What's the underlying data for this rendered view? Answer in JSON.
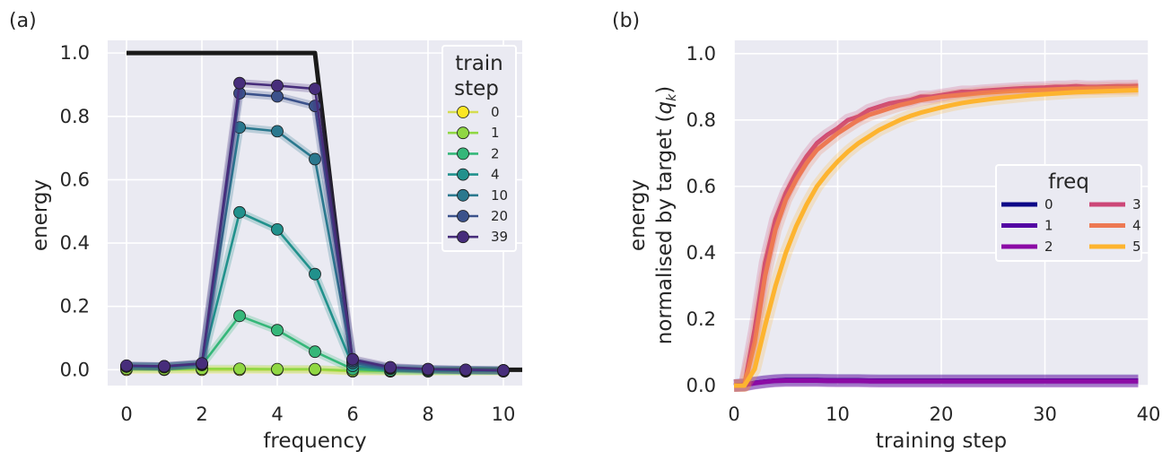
{
  "chart_data": [
    {
      "panel_label": "(a)",
      "type": "line",
      "xlabel": "frequency",
      "ylabel": "energy",
      "xlim": [
        -0.5,
        10.5
      ],
      "ylim": [
        -0.05,
        1.04
      ],
      "xticks": [
        0,
        2,
        4,
        6,
        8,
        10
      ],
      "yticks": [
        0.0,
        0.2,
        0.4,
        0.6,
        0.8,
        1.0
      ],
      "xtick_labels": [
        "0",
        "2",
        "4",
        "6",
        "8",
        "10"
      ],
      "ytick_labels": [
        "0.0",
        "0.2",
        "0.4",
        "0.6",
        "0.8",
        "1.0"
      ],
      "grid": true,
      "legend_title_lines": [
        "train",
        "step"
      ],
      "legend_position": "top-right",
      "target": {
        "name": "target",
        "color": "#1a1a1a",
        "x": [
          0,
          1,
          2,
          3,
          4,
          5,
          6,
          7,
          8,
          9,
          10,
          10.5
        ],
        "y": [
          1.0,
          1.0,
          1.0,
          1.0,
          1.0,
          1.0,
          0.0,
          0.0,
          0.0,
          0.0,
          0.0,
          0.0
        ]
      },
      "x": [
        0,
        1,
        2,
        3,
        4,
        5,
        6,
        7,
        8,
        9,
        10
      ],
      "series": [
        {
          "name": "0",
          "color": "#fde725",
          "line_color": "#d4dc50",
          "values": [
            0.0,
            0.0,
            0.0,
            0.0,
            0.0,
            0.0,
            -0.005,
            -0.005,
            -0.005,
            -0.005,
            -0.005
          ]
        },
        {
          "name": "1",
          "color": "#90d743",
          "line_color": "#90d743",
          "values": [
            0.003,
            0.002,
            0.003,
            0.003,
            0.002,
            0.002,
            -0.003,
            -0.004,
            -0.004,
            -0.004,
            -0.004
          ]
        },
        {
          "name": "2",
          "color": "#35b779",
          "line_color": "#35b779",
          "values": [
            0.01,
            0.008,
            0.015,
            0.17,
            0.125,
            0.057,
            0.002,
            -0.002,
            -0.003,
            -0.003,
            -0.003
          ]
        },
        {
          "name": "4",
          "color": "#21918c",
          "line_color": "#21918c",
          "values": [
            0.01,
            0.009,
            0.017,
            0.497,
            0.443,
            0.302,
            0.012,
            0.003,
            0.0,
            -0.002,
            -0.003
          ]
        },
        {
          "name": "10",
          "color": "#2a788e",
          "line_color": "#2a788e",
          "values": [
            0.012,
            0.01,
            0.018,
            0.765,
            0.753,
            0.665,
            0.022,
            0.005,
            0.001,
            -0.001,
            -0.002
          ]
        },
        {
          "name": "20",
          "color": "#3b528b",
          "line_color": "#3b528b",
          "values": [
            0.012,
            0.011,
            0.019,
            0.873,
            0.863,
            0.833,
            0.028,
            0.006,
            0.002,
            -0.001,
            -0.002
          ]
        },
        {
          "name": "39",
          "color": "#472d7b",
          "line_color": "#472d7b",
          "values": [
            0.013,
            0.011,
            0.02,
            0.905,
            0.897,
            0.887,
            0.033,
            0.008,
            0.002,
            0.0,
            -0.002
          ]
        }
      ]
    },
    {
      "panel_label": "(b)",
      "type": "line",
      "xlabel": "training step",
      "ylabel_lines": [
        "energy",
        "normalised by target ("
      ],
      "ylabel_symbol": "q",
      "ylabel_subscript": "k",
      "ylabel_close": ")",
      "xlim": [
        0,
        40
      ],
      "ylim": [
        0,
        1.04
      ],
      "xticks": [
        0,
        10,
        20,
        30,
        40
      ],
      "yticks": [
        0.0,
        0.2,
        0.4,
        0.6,
        0.8,
        1.0
      ],
      "xtick_labels": [
        "0",
        "10",
        "20",
        "30",
        "40"
      ],
      "ytick_labels": [
        "0.0",
        "0.2",
        "0.4",
        "0.6",
        "0.8",
        "1.0"
      ],
      "grid": true,
      "legend_title": "freq",
      "legend_position": "center-right",
      "x": [
        0,
        1,
        2,
        3,
        4,
        5,
        6,
        7,
        8,
        9,
        10,
        11,
        12,
        13,
        14,
        15,
        16,
        17,
        18,
        19,
        20,
        21,
        22,
        23,
        24,
        25,
        26,
        27,
        28,
        29,
        30,
        31,
        32,
        33,
        34,
        35,
        36,
        37,
        38,
        39
      ],
      "series": [
        {
          "name": "0",
          "color": "#0d0887",
          "values": [
            0,
            0.002,
            0.008,
            0.012,
            0.015,
            0.017,
            0.017,
            0.017,
            0.017,
            0.016,
            0.016,
            0.016,
            0.016,
            0.015,
            0.015,
            0.015,
            0.015,
            0.015,
            0.015,
            0.015,
            0.015,
            0.015,
            0.015,
            0.015,
            0.015,
            0.015,
            0.015,
            0.015,
            0.015,
            0.015,
            0.015,
            0.015,
            0.015,
            0.015,
            0.015,
            0.015,
            0.015,
            0.015,
            0.015,
            0.015
          ]
        },
        {
          "name": "1",
          "color": "#5302a3",
          "values": [
            0,
            0.002,
            0.008,
            0.012,
            0.015,
            0.016,
            0.016,
            0.016,
            0.016,
            0.016,
            0.015,
            0.015,
            0.015,
            0.015,
            0.014,
            0.014,
            0.014,
            0.014,
            0.014,
            0.014,
            0.014,
            0.014,
            0.014,
            0.014,
            0.014,
            0.014,
            0.014,
            0.014,
            0.014,
            0.014,
            0.014,
            0.014,
            0.014,
            0.014,
            0.014,
            0.014,
            0.014,
            0.014,
            0.014,
            0.014
          ]
        },
        {
          "name": "2",
          "color": "#8b0aa5",
          "values": [
            0,
            0.002,
            0.007,
            0.011,
            0.014,
            0.015,
            0.015,
            0.015,
            0.015,
            0.014,
            0.014,
            0.014,
            0.014,
            0.013,
            0.013,
            0.013,
            0.013,
            0.013,
            0.013,
            0.013,
            0.013,
            0.013,
            0.013,
            0.013,
            0.013,
            0.013,
            0.013,
            0.013,
            0.013,
            0.013,
            0.013,
            0.013,
            0.013,
            0.013,
            0.013,
            0.013,
            0.013,
            0.013,
            0.013,
            0.013
          ]
        },
        {
          "name": "3",
          "color": "#cc4778",
          "values": [
            0,
            0.0,
            0.17,
            0.37,
            0.5,
            0.58,
            0.64,
            0.69,
            0.73,
            0.755,
            0.775,
            0.8,
            0.81,
            0.83,
            0.84,
            0.85,
            0.855,
            0.86,
            0.87,
            0.87,
            0.875,
            0.88,
            0.885,
            0.885,
            0.888,
            0.89,
            0.892,
            0.894,
            0.896,
            0.897,
            0.898,
            0.9,
            0.9,
            0.902,
            0.9,
            0.9,
            0.901,
            0.902,
            0.902,
            0.903
          ]
        },
        {
          "name": "4",
          "color": "#ed7953",
          "values": [
            0,
            0.0,
            0.13,
            0.33,
            0.47,
            0.56,
            0.62,
            0.67,
            0.71,
            0.735,
            0.76,
            0.78,
            0.8,
            0.815,
            0.825,
            0.835,
            0.845,
            0.852,
            0.86,
            0.865,
            0.87,
            0.873,
            0.876,
            0.879,
            0.882,
            0.884,
            0.886,
            0.888,
            0.889,
            0.89,
            0.891,
            0.892,
            0.893,
            0.893,
            0.894,
            0.894,
            0.895,
            0.895,
            0.895,
            0.896
          ]
        },
        {
          "name": "5",
          "color": "#fdb42f",
          "values": [
            0,
            0.0,
            0.05,
            0.18,
            0.3,
            0.4,
            0.48,
            0.545,
            0.6,
            0.64,
            0.675,
            0.705,
            0.73,
            0.75,
            0.77,
            0.785,
            0.8,
            0.812,
            0.822,
            0.83,
            0.838,
            0.845,
            0.851,
            0.856,
            0.86,
            0.864,
            0.867,
            0.87,
            0.873,
            0.876,
            0.878,
            0.88,
            0.882,
            0.884,
            0.885,
            0.886,
            0.887,
            0.888,
            0.889,
            0.89
          ]
        }
      ]
    }
  ]
}
